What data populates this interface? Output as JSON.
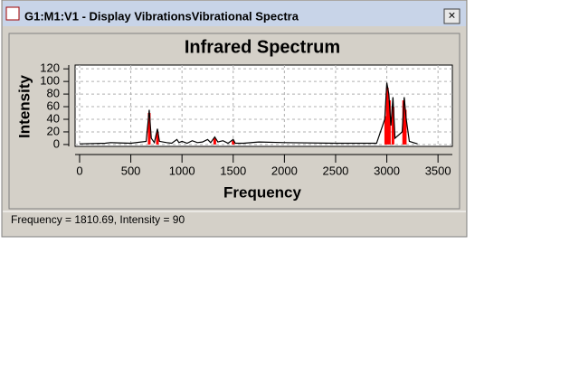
{
  "window": {
    "title": "G1:M1:V1 - Display VibrationsVibrational Spectra",
    "close": "×"
  },
  "status": "Frequency = 1810.69,  Intensity = 90",
  "chart_data": {
    "type": "line",
    "title": "Infrared Spectrum",
    "x_label": "Frequency",
    "y_label": "Intensity",
    "xlim": [
      -44,
      3640
    ],
    "ylim": [
      -3,
      126
    ],
    "xticks": [
      0,
      500,
      1000,
      1500,
      2000,
      2500,
      3000,
      3500
    ],
    "yticks": [
      0,
      20,
      40,
      60,
      80,
      100,
      120
    ],
    "grid": true,
    "series": [
      {
        "color": "#000000",
        "style": "line",
        "x": [
          0,
          250,
          300,
          500,
          650,
          680,
          700,
          730,
          760,
          780,
          850,
          900,
          950,
          970,
          1000,
          1050,
          1100,
          1150,
          1200,
          1250,
          1280,
          1320,
          1350,
          1400,
          1450,
          1500,
          1520,
          1600,
          1750,
          2000,
          2500,
          2900,
          2980,
          3000,
          3020,
          3040,
          3060,
          3080,
          3150,
          3170,
          3190,
          3220,
          3300
        ],
        "values": [
          1,
          2,
          3,
          2,
          5,
          55,
          10,
          3,
          25,
          5,
          3,
          2,
          8,
          3,
          5,
          2,
          6,
          3,
          4,
          8,
          3,
          12,
          4,
          6,
          2,
          8,
          2,
          2,
          4,
          3,
          2,
          2,
          40,
          98,
          80,
          30,
          75,
          10,
          20,
          75,
          40,
          5,
          1
        ]
      },
      {
        "color": "#ff0000",
        "style": "sticks",
        "x": [
          680,
          760,
          1320,
          1500,
          2990,
          3005,
          3025,
          3060,
          3165,
          3180
        ],
        "values": [
          50,
          20,
          10,
          6,
          45,
          90,
          70,
          60,
          70,
          55
        ]
      }
    ]
  }
}
